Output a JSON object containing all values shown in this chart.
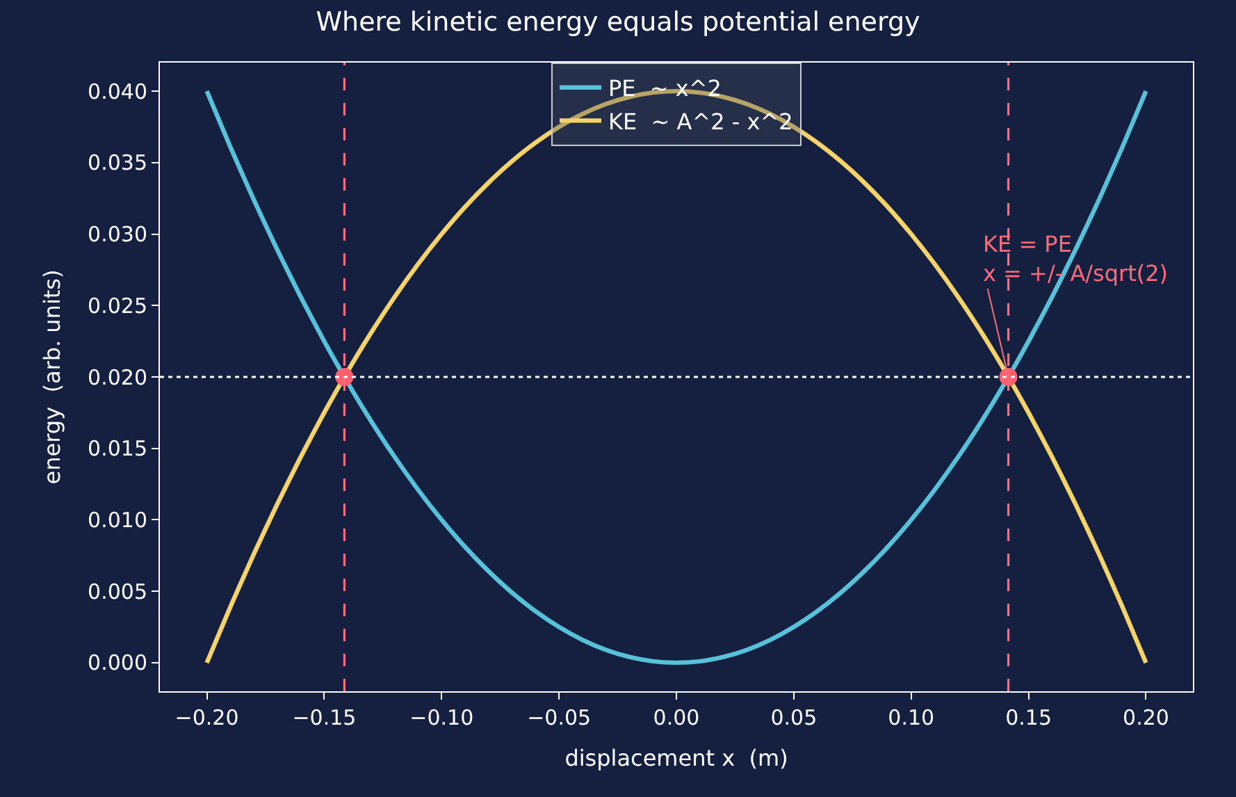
{
  "chart_data": {
    "type": "line",
    "title": "Where kinetic energy equals potential energy",
    "xlabel": "displacement x  (m)",
    "ylabel": "energy  (arb. units)",
    "x": [
      -0.2,
      -0.19,
      -0.18,
      -0.17,
      -0.16,
      -0.15,
      -0.14,
      -0.13,
      -0.12,
      -0.11,
      -0.1,
      -0.09,
      -0.08,
      -0.07,
      -0.06,
      -0.05,
      -0.04,
      -0.03,
      -0.02,
      -0.01,
      0,
      0.01,
      0.02,
      0.03,
      0.04,
      0.05,
      0.06,
      0.07,
      0.08,
      0.09,
      0.1,
      0.11,
      0.12,
      0.13,
      0.14,
      0.15,
      0.16,
      0.17,
      0.18,
      0.19,
      0.2
    ],
    "series": [
      {
        "name": "PE  ~ x^2",
        "color": "#56c1d8",
        "values": [
          0.04,
          0.0361,
          0.0324,
          0.0289,
          0.0256,
          0.0225,
          0.0196,
          0.0169,
          0.0144,
          0.0121,
          0.01,
          0.0081,
          0.0064,
          0.0049,
          0.0036,
          0.0025,
          0.0016,
          0.0009,
          0.0004,
          0.0001,
          0,
          0.0001,
          0.0004,
          0.0009,
          0.0016,
          0.0025,
          0.0036,
          0.0049,
          0.0064,
          0.0081,
          0.01,
          0.0121,
          0.0144,
          0.0169,
          0.0196,
          0.0225,
          0.0256,
          0.0289,
          0.0324,
          0.0361,
          0.04
        ]
      },
      {
        "name": "KE  ~ A^2 - x^2",
        "color": "#f5d36b",
        "values": [
          0,
          0.0039,
          0.0076,
          0.0111,
          0.0144,
          0.0175,
          0.0204,
          0.0231,
          0.0256,
          0.0279,
          0.03,
          0.0319,
          0.0336,
          0.0351,
          0.0364,
          0.0375,
          0.0384,
          0.0391,
          0.0396,
          0.0399,
          0.04,
          0.0399,
          0.0396,
          0.0391,
          0.0384,
          0.0375,
          0.0364,
          0.0351,
          0.0336,
          0.0319,
          0.03,
          0.0279,
          0.0256,
          0.0231,
          0.0204,
          0.0175,
          0.0144,
          0.0111,
          0.0076,
          0.0039,
          0
        ]
      },
      {
        "type": "scatter",
        "marker": "circle",
        "color": "#ff5f6d",
        "x": [
          -0.1414,
          0.1414
        ],
        "values": [
          0.02,
          0.02
        ]
      }
    ],
    "ref_lines": [
      {
        "axis": "x",
        "value": -0.1414,
        "color": "#ff6b78",
        "line_style": "dashed"
      },
      {
        "axis": "x",
        "value": 0.1414,
        "color": "#ff6b78",
        "line_style": "dashed"
      },
      {
        "axis": "y",
        "value": 0.02,
        "color": "#ffffff",
        "line_style": "dotted"
      }
    ],
    "annotations": [
      {
        "text": "KE = PE\nx = +/- A/sqrt(2)",
        "x": 0.1414,
        "y": 0.02
      }
    ],
    "xlim": [
      -0.22,
      0.22
    ],
    "xticks": [
      {
        "value": -0.2,
        "label": "−0.20"
      },
      {
        "value": -0.15,
        "label": "−0.15"
      },
      {
        "value": -0.1,
        "label": "−0.10"
      },
      {
        "value": -0.05,
        "label": "−0.05"
      },
      {
        "value": 0,
        "label": "0.00"
      },
      {
        "value": 0.05,
        "label": "0.05"
      },
      {
        "value": 0.1,
        "label": "0.10"
      },
      {
        "value": 0.15,
        "label": "0.15"
      },
      {
        "value": 0.2,
        "label": "0.20"
      }
    ],
    "ylim": [
      -0.002,
      0.042
    ],
    "yticks": [
      {
        "value": 0,
        "label": "0.000"
      },
      {
        "value": 0.005,
        "label": "0.005"
      },
      {
        "value": 0.01,
        "label": "0.010"
      },
      {
        "value": 0.015,
        "label": "0.015"
      },
      {
        "value": 0.02,
        "label": "0.020"
      },
      {
        "value": 0.025,
        "label": "0.025"
      },
      {
        "value": 0.03,
        "label": "0.030"
      },
      {
        "value": 0.035,
        "label": "0.035"
      },
      {
        "value": 0.04,
        "label": "0.040"
      }
    ],
    "grid": false,
    "legend": "top",
    "line_style": "solid"
  }
}
